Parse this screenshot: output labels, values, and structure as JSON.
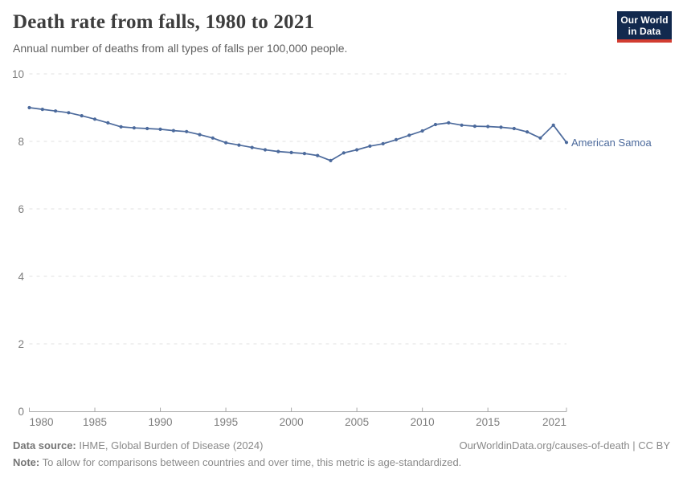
{
  "header": {
    "title": "Death rate from falls, 1980 to 2021",
    "subtitle": "Annual number of deaths from all types of falls per 100,000 people."
  },
  "logo": {
    "line1": "Our World",
    "line2": "in Data",
    "bg_color": "#12294E",
    "accent_color": "#D23C31"
  },
  "chart_data": {
    "type": "line",
    "title": "Death rate from falls, 1980 to 2021",
    "xlabel": "",
    "ylabel": "",
    "xlim": [
      1980,
      2021
    ],
    "ylim": [
      0,
      10
    ],
    "xticks": [
      1980,
      1985,
      1990,
      1995,
      2000,
      2005,
      2010,
      2015,
      2021
    ],
    "yticks": [
      0,
      2,
      4,
      6,
      8,
      10
    ],
    "grid": "horizontal-dashed",
    "legend_position": "end-of-line-label",
    "series": [
      {
        "name": "American Samoa",
        "color": "#4C6A9C",
        "x": [
          1980,
          1981,
          1982,
          1983,
          1984,
          1985,
          1986,
          1987,
          1988,
          1989,
          1990,
          1991,
          1992,
          1993,
          1994,
          1995,
          1996,
          1997,
          1998,
          1999,
          2000,
          2001,
          2002,
          2003,
          2004,
          2005,
          2006,
          2007,
          2008,
          2009,
          2010,
          2011,
          2012,
          2013,
          2014,
          2015,
          2016,
          2017,
          2018,
          2019,
          2020,
          2021
        ],
        "values": [
          9.0,
          8.95,
          8.9,
          8.85,
          8.76,
          8.66,
          8.55,
          8.43,
          8.4,
          8.38,
          8.36,
          8.32,
          8.29,
          8.2,
          8.1,
          7.96,
          7.89,
          7.82,
          7.75,
          7.7,
          7.67,
          7.64,
          7.58,
          7.43,
          7.66,
          7.75,
          7.86,
          7.93,
          8.05,
          8.18,
          8.31,
          8.5,
          8.55,
          8.48,
          8.45,
          8.44,
          8.42,
          8.38,
          8.28,
          8.1,
          8.48,
          7.97
        ]
      }
    ],
    "grid_color": "#E2E2E2",
    "axis_color": "#A8A8A8"
  },
  "footer": {
    "source_label": "Data source:",
    "source_value": "IHME, Global Burden of Disease (2024)",
    "attribution": "OurWorldinData.org/causes-of-death | CC BY",
    "note_label": "Note:",
    "note_value": "To allow for comparisons between countries and over time, this metric is age-standardized."
  }
}
